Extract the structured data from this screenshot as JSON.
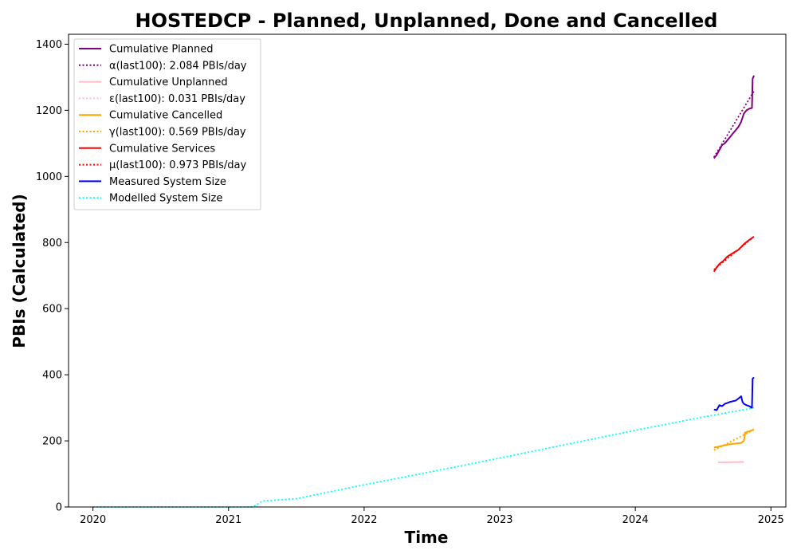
{
  "chart_data": {
    "type": "line",
    "title": "HOSTEDCP - Planned, Unplanned, Done  and Cancelled",
    "xlabel": "Time",
    "ylabel": "PBIs (Calculated)",
    "xlim": [
      2019.82,
      2025.11
    ],
    "ylim": [
      0,
      1430
    ],
    "x_ticks": [
      2020,
      2021,
      2022,
      2023,
      2024,
      2025
    ],
    "x_tick_labels": [
      "2020",
      "2021",
      "2022",
      "2023",
      "2024",
      "2025"
    ],
    "y_ticks": [
      0,
      200,
      400,
      600,
      800,
      1000,
      1200,
      1400
    ],
    "y_tick_labels": [
      "0",
      "200",
      "400",
      "600",
      "800",
      "1000",
      "1200",
      "1400"
    ],
    "grid": false,
    "legend_position": "top-left",
    "series": [
      {
        "name": "Cumulative Planned",
        "color": "#800080",
        "style": "solid",
        "points": [
          [
            2024.58,
            1055
          ],
          [
            2024.6,
            1065
          ],
          [
            2024.62,
            1080
          ],
          [
            2024.64,
            1095
          ],
          [
            2024.66,
            1100
          ],
          [
            2024.68,
            1110
          ],
          [
            2024.7,
            1120
          ],
          [
            2024.72,
            1130
          ],
          [
            2024.74,
            1140
          ],
          [
            2024.76,
            1150
          ],
          [
            2024.78,
            1165
          ],
          [
            2024.8,
            1190
          ],
          [
            2024.82,
            1200
          ],
          [
            2024.84,
            1205
          ],
          [
            2024.86,
            1207
          ],
          [
            2024.865,
            1295
          ],
          [
            2024.875,
            1305
          ]
        ]
      },
      {
        "name": "α(last100): 2.084 PBIs/day",
        "color": "#800080",
        "style": "dotted",
        "points": [
          [
            2024.58,
            1058
          ],
          [
            2024.875,
            1258
          ]
        ]
      },
      {
        "name": "Cumulative Unplanned",
        "color": "#ffc0cb",
        "style": "solid",
        "points": [
          [
            2024.61,
            135
          ],
          [
            2024.8,
            136
          ]
        ]
      },
      {
        "name": "ε(last100): 0.031 PBIs/day",
        "color": "#ffc0cb",
        "style": "dotted",
        "points": [
          [
            2024.61,
            135
          ],
          [
            2024.8,
            137
          ]
        ]
      },
      {
        "name": "Cumulative Cancelled",
        "color": "#ffa500",
        "style": "solid",
        "points": [
          [
            2024.58,
            180
          ],
          [
            2024.62,
            183
          ],
          [
            2024.66,
            187
          ],
          [
            2024.7,
            190
          ],
          [
            2024.74,
            192
          ],
          [
            2024.78,
            194
          ],
          [
            2024.8,
            200
          ],
          [
            2024.81,
            225
          ],
          [
            2024.83,
            228
          ],
          [
            2024.86,
            232
          ],
          [
            2024.875,
            235
          ]
        ]
      },
      {
        "name": "γ(last100): 0.569 PBIs/day",
        "color": "#ffa500",
        "style": "dotted",
        "points": [
          [
            2024.58,
            172
          ],
          [
            2024.875,
            234
          ]
        ]
      },
      {
        "name": "Cumulative Services",
        "color": "#ff0000",
        "style": "solid",
        "points": [
          [
            2024.58,
            712
          ],
          [
            2024.6,
            725
          ],
          [
            2024.62,
            735
          ],
          [
            2024.65,
            745
          ],
          [
            2024.68,
            758
          ],
          [
            2024.72,
            768
          ],
          [
            2024.76,
            778
          ],
          [
            2024.8,
            795
          ],
          [
            2024.84,
            808
          ],
          [
            2024.875,
            818
          ]
        ]
      },
      {
        "name": "μ(last100): 0.973 PBIs/day",
        "color": "#ff0000",
        "style": "dotted",
        "points": [
          [
            2024.58,
            718
          ],
          [
            2024.875,
            818
          ]
        ]
      },
      {
        "name": "Measured System Size",
        "color": "#0000ff",
        "style": "solid",
        "points": [
          [
            2024.58,
            295
          ],
          [
            2024.6,
            293
          ],
          [
            2024.62,
            308
          ],
          [
            2024.64,
            305
          ],
          [
            2024.66,
            312
          ],
          [
            2024.68,
            315
          ],
          [
            2024.7,
            318
          ],
          [
            2024.72,
            320
          ],
          [
            2024.74,
            322
          ],
          [
            2024.76,
            328
          ],
          [
            2024.78,
            335
          ],
          [
            2024.79,
            318
          ],
          [
            2024.8,
            312
          ],
          [
            2024.82,
            308
          ],
          [
            2024.84,
            305
          ],
          [
            2024.86,
            300
          ],
          [
            2024.865,
            388
          ],
          [
            2024.875,
            392
          ]
        ]
      },
      {
        "name": "Modelled System Size",
        "color": "#00ffff",
        "style": "dotted",
        "points": [
          [
            2020.0,
            0
          ],
          [
            2021.18,
            0
          ],
          [
            2021.25,
            18
          ],
          [
            2021.5,
            25
          ],
          [
            2022.0,
            67
          ],
          [
            2022.5,
            107
          ],
          [
            2023.0,
            148
          ],
          [
            2023.5,
            190
          ],
          [
            2024.0,
            232
          ],
          [
            2024.5,
            272
          ],
          [
            2024.875,
            300
          ]
        ]
      }
    ]
  }
}
